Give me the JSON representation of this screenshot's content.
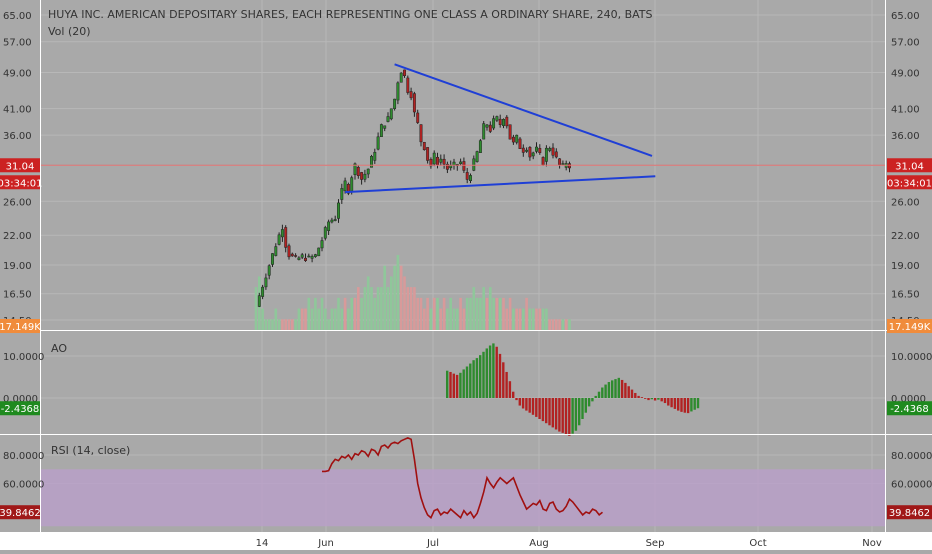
{
  "colors": {
    "background": "#a9a9a9",
    "axis_background": "#ffffff",
    "up": "#2e8b2e",
    "down": "#b22222",
    "trendline": "#1f3fd6",
    "price_line": "#e07070",
    "rsi_line": "#a01010",
    "rsi_band": "#b9a0c8",
    "price_badge": "#cc2222",
    "volume_badge": "#f08c3c",
    "ao_badge": "#1f8a1f",
    "rsi_badge": "#a01818"
  },
  "header": {
    "title": "HUYA INC. AMERICAN DEPOSITARY SHARES, EACH REPRESENTING ONE CLASS A ORDINARY SHARE, 240, BATS",
    "volume_label": "Vol (20)"
  },
  "time_axis": {
    "labels": [
      "14",
      "Jun",
      "Jul",
      "Aug",
      "Sep",
      "Oct",
      "Nov"
    ]
  },
  "chart_data": [
    {
      "type": "candlestick",
      "title": "HUYA INC. AMERICAN DEPOSITARY SHARES, EACH REPRESENTING ONE CLASS A ORDINARY SHARE, 240, BATS",
      "scale": "log",
      "ylim": [
        14.5,
        65
      ],
      "y_ticks": [
        "65.00",
        "57.00",
        "49.00",
        "41.00",
        "36.00",
        "31.00",
        "26.00",
        "22.00",
        "19.00",
        "16.50",
        "14.50"
      ],
      "last_price": "31.04",
      "countdown": "03:34:01",
      "x_labels": [
        "14",
        "Jun",
        "Jul",
        "Aug",
        "Sep",
        "Oct",
        "Nov"
      ],
      "close_path": [
        [
          0,
          15.5
        ],
        [
          2,
          17.2
        ],
        [
          4,
          19.0
        ],
        [
          6,
          21.0
        ],
        [
          8,
          23.0
        ],
        [
          9,
          21.0
        ],
        [
          10,
          20.0
        ],
        [
          12,
          19.5
        ],
        [
          14,
          19.8
        ],
        [
          16,
          19.6
        ],
        [
          18,
          19.9
        ],
        [
          20,
          21.5
        ],
        [
          22,
          23.5
        ],
        [
          24,
          24.0
        ],
        [
          25,
          26.0
        ],
        [
          27,
          28.5
        ],
        [
          28,
          27.5
        ],
        [
          29,
          29.5
        ],
        [
          30,
          31.0
        ],
        [
          32,
          29.0
        ],
        [
          34,
          30.5
        ],
        [
          36,
          33.5
        ],
        [
          38,
          37.5
        ],
        [
          40,
          39.0
        ],
        [
          42,
          43.0
        ],
        [
          43,
          47.0
        ],
        [
          44,
          49.5
        ],
        [
          45,
          48.0
        ],
        [
          46,
          45.0
        ],
        [
          47,
          44.0
        ],
        [
          48,
          40.0
        ],
        [
          49,
          38.0
        ],
        [
          50,
          35.0
        ],
        [
          51,
          34.0
        ],
        [
          52,
          32.0
        ],
        [
          53,
          31.0
        ],
        [
          54,
          32.5
        ],
        [
          55,
          31.5
        ],
        [
          56,
          32.0
        ],
        [
          58,
          30.5
        ],
        [
          60,
          31.0
        ],
        [
          62,
          31.5
        ],
        [
          63,
          30.0
        ],
        [
          64,
          29.0
        ],
        [
          65,
          30.0
        ],
        [
          66,
          31.5
        ],
        [
          67,
          33.0
        ],
        [
          68,
          35.0
        ],
        [
          69,
          37.5
        ],
        [
          70,
          38.0
        ],
        [
          71,
          37.0
        ],
        [
          72,
          38.5
        ],
        [
          73,
          39.0
        ],
        [
          74,
          38.0
        ],
        [
          75,
          39.5
        ],
        [
          76,
          38.0
        ],
        [
          77,
          35.5
        ],
        [
          78,
          34.5
        ],
        [
          79,
          35.5
        ],
        [
          80,
          34.0
        ],
        [
          81,
          33.5
        ],
        [
          82,
          34.0
        ],
        [
          83,
          32.5
        ],
        [
          84,
          33.0
        ],
        [
          85,
          33.5
        ],
        [
          86,
          32.5
        ],
        [
          87,
          31.5
        ],
        [
          88,
          33.5
        ],
        [
          89,
          34.0
        ],
        [
          90,
          33.0
        ],
        [
          91,
          32.0
        ],
        [
          92,
          31.0
        ],
        [
          93,
          30.8
        ],
        [
          94,
          31.5
        ],
        [
          95,
          31.04
        ]
      ],
      "volume": {
        "label": "Vol (20)",
        "last": "17.149K",
        "values": [
          4,
          5,
          2,
          1,
          1,
          1,
          2,
          1,
          1,
          1,
          1,
          1,
          1,
          2,
          2,
          2,
          3,
          2,
          3,
          2,
          3,
          2,
          1,
          2,
          2,
          3,
          2,
          3,
          2,
          3,
          3,
          4,
          3,
          4,
          5,
          4,
          3,
          4,
          4,
          6,
          4,
          5,
          6,
          7,
          6,
          5,
          4,
          4,
          4,
          3,
          3,
          2,
          3,
          2,
          3,
          3,
          2,
          3,
          2,
          3,
          2,
          2,
          3,
          2,
          3,
          3,
          4,
          3,
          3,
          4,
          3,
          4,
          3,
          3,
          3,
          3,
          2,
          3,
          2,
          2,
          2,
          2,
          3,
          2,
          2,
          2,
          2,
          2,
          2,
          1,
          1,
          1,
          1,
          1,
          1,
          1
        ]
      },
      "trendlines": [
        {
          "from": [
            42,
            51.0
          ],
          "to": [
            120,
            32.5
          ]
        },
        {
          "from": [
            27,
            27.2
          ],
          "to": [
            121,
            29.4
          ]
        }
      ]
    },
    {
      "type": "bar",
      "title": "AO",
      "y_ticks": [
        "10.0000",
        "0.0000"
      ],
      "last": "-2.4368",
      "values": [
        6.5,
        6.2,
        5.8,
        5.5,
        6.0,
        6.8,
        7.5,
        8.2,
        9.0,
        9.5,
        10.2,
        11.0,
        11.8,
        12.5,
        13.0,
        12.2,
        10.5,
        8.5,
        6.2,
        4.0,
        1.5,
        -0.5,
        -1.8,
        -2.5,
        -3.0,
        -3.5,
        -4.0,
        -4.5,
        -5.0,
        -5.5,
        -6.0,
        -6.5,
        -7.0,
        -7.5,
        -8.0,
        -8.3,
        -8.6,
        -9.0,
        -8.5,
        -7.8,
        -6.5,
        -5.0,
        -3.5,
        -2.0,
        -0.8,
        0.5,
        1.5,
        2.5,
        3.2,
        3.8,
        4.2,
        4.5,
        4.8,
        4.3,
        3.6,
        2.8,
        2.0,
        1.2,
        0.5,
        0.2,
        -0.2,
        -0.5,
        -0.3,
        -0.6,
        -0.4,
        -0.8,
        -1.2,
        -1.8,
        -2.2,
        -2.6,
        -3.0,
        -3.3,
        -3.5,
        -3.6,
        -3.2,
        -2.8,
        -2.4368
      ],
      "start_index": 58
    },
    {
      "type": "line",
      "title": "RSI (14, close)",
      "y_ticks": [
        "80.0000",
        "60.0000"
      ],
      "last": "39.8462",
      "band": [
        30,
        70
      ],
      "start_index": 20,
      "values": [
        68.5,
        68.5,
        69.0,
        74.0,
        77.0,
        76.0,
        79.0,
        78.0,
        80.0,
        77.0,
        81.0,
        80.0,
        83.0,
        82.0,
        79.0,
        84.0,
        83.0,
        80.0,
        86.0,
        87.0,
        85.0,
        88.0,
        89.0,
        88.0,
        90.0,
        91.0,
        92.0,
        91.0,
        77.0,
        60.0,
        50.0,
        43.0,
        38.0,
        36.0,
        41.0,
        42.0,
        38.0,
        40.0,
        39.0,
        42.0,
        40.0,
        38.0,
        36.0,
        41.0,
        38.0,
        40.0,
        36.0,
        39.0,
        46.0,
        54.0,
        64.0,
        60.0,
        57.0,
        61.0,
        64.0,
        62.0,
        60.0,
        62.0,
        64.0,
        58.0,
        52.0,
        47.0,
        42.0,
        44.0,
        46.0,
        45.0,
        48.0,
        42.0,
        41.0,
        46.0,
        47.0,
        42.0,
        40.0,
        41.0,
        44.0,
        49.0,
        47.0,
        44.0,
        41.0,
        38.0,
        40.0,
        39.0,
        42.0,
        41.0,
        38.0,
        39.8462
      ]
    }
  ]
}
